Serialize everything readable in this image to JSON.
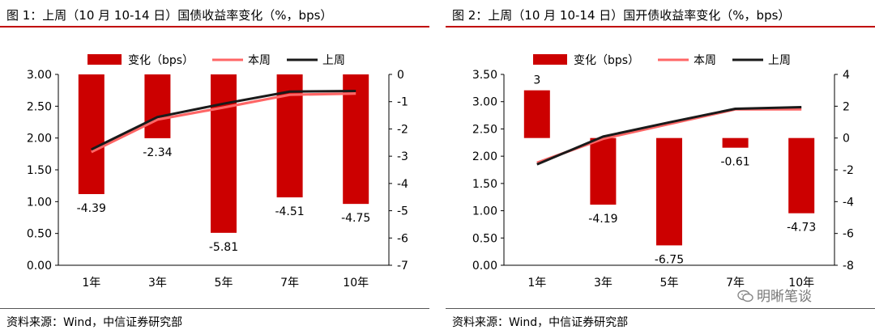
{
  "charts": [
    {
      "title": "图 1：上周（10 月 10-14 日）国债收益率变化（%，bps）",
      "source": "资料来源：Wind，中信证券研究部",
      "colors": {
        "bar": "#cc0000",
        "this_week": "#ff6666",
        "last_week": "#1a1a1a",
        "accent": "#c00000"
      }
    },
    {
      "title": "图 2：上周（10 月 10-14 日）国开债收益率变化（%，bps）",
      "source": "资料来源：Wind，中信证券研究部",
      "colors": {
        "bar": "#cc0000",
        "this_week": "#ff6666",
        "last_week": "#1a1a1a",
        "accent": "#c00000"
      }
    }
  ],
  "watermark": {
    "text": "明晰笔谈",
    "icon": "wechat-icon"
  },
  "chart_data": [
    {
      "type": "bar+line",
      "categories": [
        "1年",
        "3年",
        "5年",
        "7年",
        "10年"
      ],
      "legend": [
        "变化（bps）",
        "本周",
        "上周"
      ],
      "legend_position": "top",
      "series": [
        {
          "name": "变化（bps）",
          "type": "bar",
          "axis": "right",
          "values": [
            -4.39,
            -2.34,
            -5.81,
            -4.51,
            -4.75
          ],
          "labels": [
            "-4.39",
            "-2.34",
            "-5.81",
            "-4.51",
            "-4.75"
          ]
        },
        {
          "name": "本周",
          "type": "line",
          "axis": "left",
          "values": [
            1.78,
            2.29,
            2.48,
            2.68,
            2.7
          ]
        },
        {
          "name": "上周",
          "type": "line",
          "axis": "left",
          "values": [
            1.82,
            2.33,
            2.54,
            2.73,
            2.74
          ]
        }
      ],
      "y_left": {
        "min": 0,
        "max": 3,
        "step": 0.5,
        "tick_labels": [
          "0.00",
          "0.50",
          "1.00",
          "1.50",
          "2.00",
          "2.50",
          "3.00"
        ]
      },
      "y_right": {
        "min": -7,
        "max": 0,
        "step": 1,
        "tick_labels": [
          "-7",
          "-6",
          "-5",
          "-4",
          "-3",
          "-2",
          "-1",
          "0"
        ]
      },
      "grid": false
    },
    {
      "type": "bar+line",
      "categories": [
        "1年",
        "3年",
        "5年",
        "7年",
        "10年"
      ],
      "legend": [
        "变化（bps）",
        "本周",
        "上周"
      ],
      "legend_position": "top",
      "series": [
        {
          "name": "变化（bps）",
          "type": "bar",
          "axis": "right",
          "values": [
            3,
            -4.19,
            -6.75,
            -0.61,
            -4.73
          ],
          "labels": [
            "3",
            "-4.19",
            "-6.75",
            "-0.61",
            "-4.73"
          ]
        },
        {
          "name": "本周",
          "type": "line",
          "axis": "left",
          "values": [
            1.88,
            2.32,
            2.59,
            2.86,
            2.86
          ]
        },
        {
          "name": "上周",
          "type": "line",
          "axis": "left",
          "values": [
            1.85,
            2.36,
            2.62,
            2.87,
            2.9
          ]
        }
      ],
      "y_left": {
        "min": 0,
        "max": 3.5,
        "step": 0.5,
        "tick_labels": [
          "0.00",
          "0.50",
          "1.00",
          "1.50",
          "2.00",
          "2.50",
          "3.00",
          "3.50"
        ]
      },
      "y_right": {
        "min": -8,
        "max": 4,
        "step": 2,
        "tick_labels": [
          "-8",
          "-6",
          "-4",
          "-2",
          "0",
          "2",
          "4"
        ]
      },
      "grid": false
    }
  ]
}
